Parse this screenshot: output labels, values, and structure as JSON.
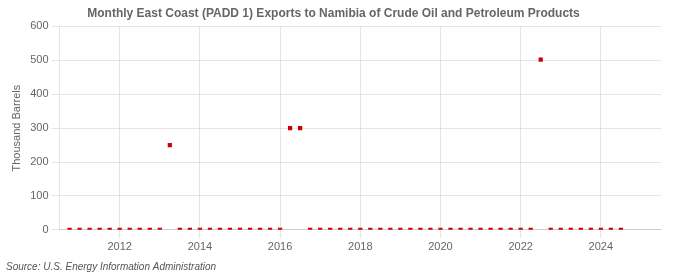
{
  "chart_data": {
    "type": "scatter",
    "title": "Monthly East Coast (PADD 1) Exports to Namibia of Crude Oil and Petroleum Products",
    "ylabel": "Thousand Barrels",
    "source": "Source: U.S. Energy Information Administration",
    "color": "#cc0000",
    "marker": "square",
    "grid": true,
    "xlim": [
      2010.5,
      2025.5
    ],
    "ylim": [
      0,
      600
    ],
    "xticks": [
      2012,
      2014,
      2016,
      2018,
      2020,
      2022,
      2024
    ],
    "yticks": [
      0,
      100,
      200,
      300,
      400,
      500,
      600
    ],
    "x": [
      2010.75,
      2011.0,
      2011.25,
      2011.5,
      2011.75,
      2012.0,
      2012.25,
      2012.5,
      2012.75,
      2013.0,
      2013.25,
      2013.5,
      2013.75,
      2014.0,
      2014.25,
      2014.5,
      2014.75,
      2015.0,
      2015.25,
      2015.5,
      2015.75,
      2016.0,
      2016.25,
      2016.5,
      2016.75,
      2017.0,
      2017.25,
      2017.5,
      2017.75,
      2018.0,
      2018.25,
      2018.5,
      2018.75,
      2019.0,
      2019.25,
      2019.5,
      2019.75,
      2020.0,
      2020.25,
      2020.5,
      2020.75,
      2021.0,
      2021.25,
      2021.5,
      2021.75,
      2022.0,
      2022.25,
      2022.5,
      2022.75,
      2023.0,
      2023.25,
      2023.5,
      2023.75,
      2024.0,
      2024.25,
      2024.5
    ],
    "values": [
      0,
      0,
      0,
      0,
      0,
      0,
      0,
      0,
      0,
      0,
      250,
      0,
      0,
      0,
      0,
      0,
      0,
      0,
      0,
      0,
      0,
      0,
      300,
      300,
      0,
      0,
      0,
      0,
      0,
      0,
      0,
      0,
      0,
      0,
      0,
      0,
      0,
      0,
      0,
      0,
      0,
      0,
      0,
      0,
      0,
      0,
      0,
      502,
      0,
      0,
      0,
      0,
      0,
      0,
      0,
      0
    ]
  }
}
